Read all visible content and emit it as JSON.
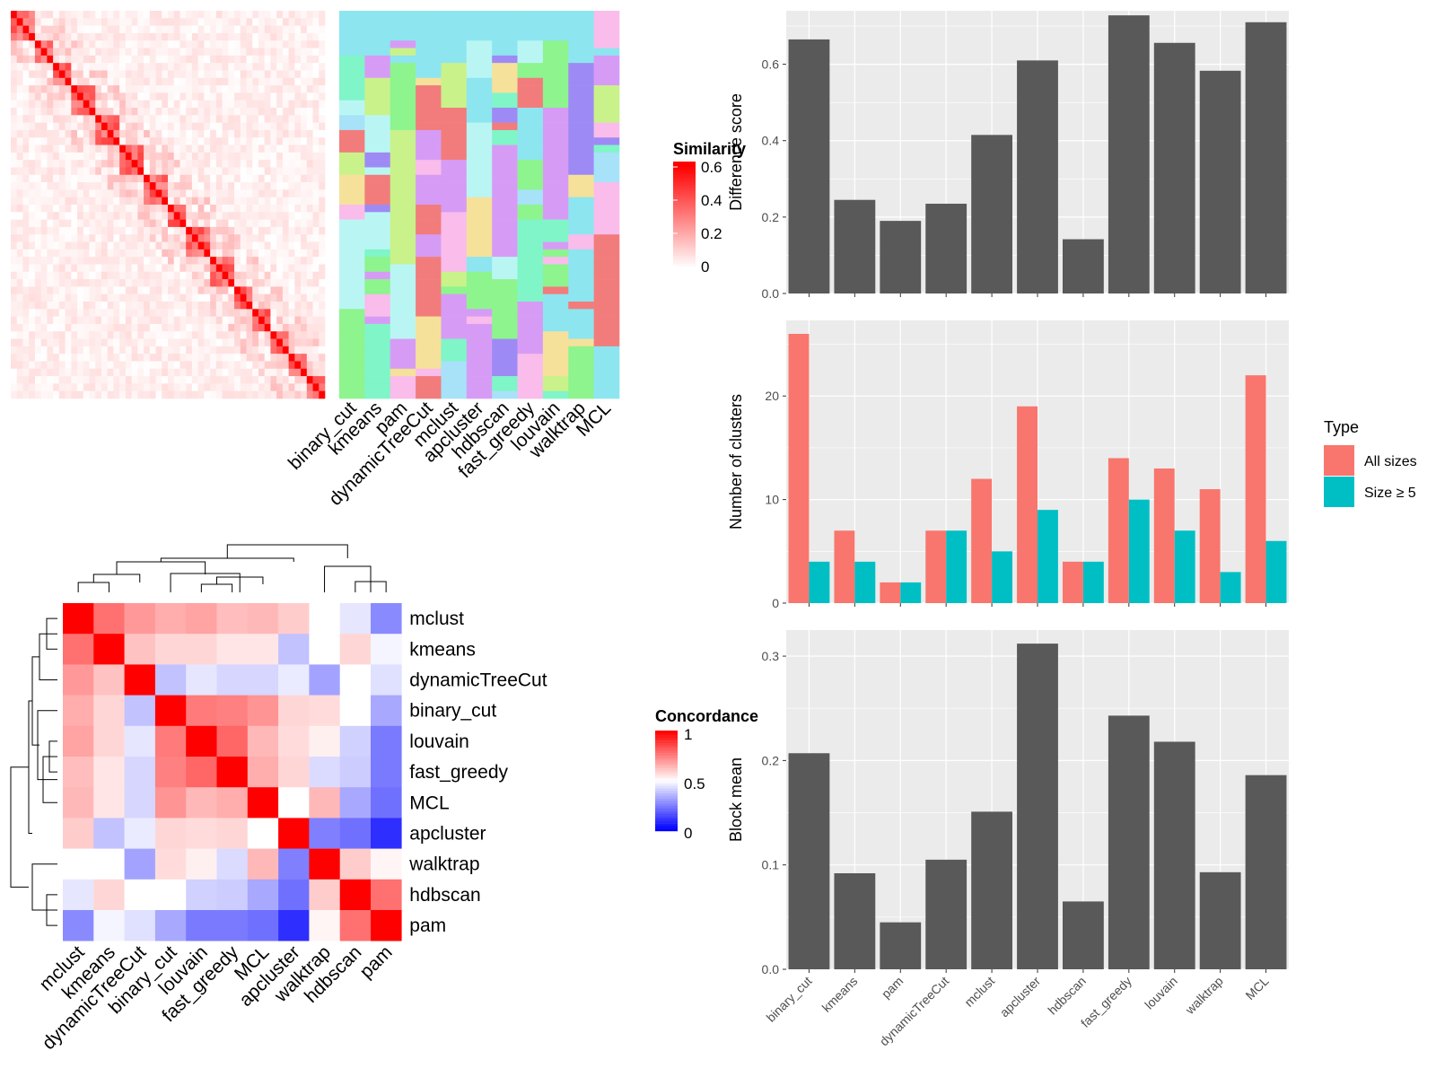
{
  "methods_order_top": [
    "binary_cut",
    "kmeans",
    "pam",
    "dynamicTreeCut",
    "mclust",
    "apcluster",
    "hdbscan",
    "fast_greedy",
    "louvain",
    "walktrap",
    "MCL"
  ],
  "similarity_legend": {
    "title": "Similarity",
    "ticks": [
      "0.6",
      "0.4",
      "0.2",
      "0"
    ]
  },
  "concordance_legend": {
    "title": "Concordance",
    "ticks": [
      "1",
      "0.5",
      "0"
    ]
  },
  "concordance": {
    "order": [
      "mclust",
      "kmeans",
      "dynamicTreeCut",
      "binary_cut",
      "louvain",
      "fast_greedy",
      "MCL",
      "apcluster",
      "walktrap",
      "hdbscan",
      "pam"
    ],
    "matrix": [
      [
        1.0,
        0.78,
        0.7,
        0.66,
        0.68,
        0.63,
        0.64,
        0.6,
        0.5,
        0.45,
        0.27
      ],
      [
        0.78,
        1.0,
        0.62,
        0.58,
        0.58,
        0.55,
        0.55,
        0.38,
        0.5,
        0.58,
        0.48
      ],
      [
        0.7,
        0.62,
        1.0,
        0.38,
        0.45,
        0.42,
        0.42,
        0.46,
        0.32,
        0.5,
        0.44
      ],
      [
        0.66,
        0.58,
        0.38,
        1.0,
        0.76,
        0.75,
        0.71,
        0.58,
        0.57,
        0.5,
        0.33
      ],
      [
        0.68,
        0.58,
        0.45,
        0.76,
        1.0,
        0.8,
        0.64,
        0.57,
        0.53,
        0.41,
        0.24
      ],
      [
        0.63,
        0.55,
        0.42,
        0.75,
        0.8,
        1.0,
        0.66,
        0.58,
        0.43,
        0.4,
        0.24
      ],
      [
        0.64,
        0.55,
        0.42,
        0.71,
        0.64,
        0.66,
        1.0,
        0.5,
        0.64,
        0.33,
        0.22
      ],
      [
        0.6,
        0.38,
        0.46,
        0.58,
        0.57,
        0.58,
        0.5,
        1.0,
        0.25,
        0.22,
        0.09
      ],
      [
        0.5,
        0.5,
        0.32,
        0.57,
        0.53,
        0.43,
        0.64,
        0.25,
        1.0,
        0.6,
        0.52
      ],
      [
        0.45,
        0.58,
        0.5,
        0.5,
        0.41,
        0.4,
        0.33,
        0.22,
        0.6,
        1.0,
        0.78
      ],
      [
        0.27,
        0.48,
        0.44,
        0.33,
        0.24,
        0.24,
        0.22,
        0.09,
        0.52,
        0.78,
        1.0
      ]
    ]
  },
  "chart_data": [
    {
      "type": "bar",
      "ylabel": "Difference score",
      "categories": [
        "binary_cut",
        "kmeans",
        "pam",
        "dynamicTreeCut",
        "mclust",
        "apcluster",
        "hdbscan",
        "fast_greedy",
        "louvain",
        "walktrap",
        "MCL"
      ],
      "values": [
        0.665,
        0.245,
        0.19,
        0.235,
        0.415,
        0.61,
        0.142,
        0.728,
        0.656,
        0.583,
        0.71
      ],
      "ylim": [
        0,
        0.74
      ],
      "yticks": [
        "0.0",
        "0.2",
        "0.4",
        "0.6"
      ]
    },
    {
      "type": "bar",
      "ylabel": "Number of clusters",
      "legend": {
        "title": "Type",
        "entries": [
          "All sizes",
          "Size ≥ 5"
        ]
      },
      "categories": [
        "binary_cut",
        "kmeans",
        "pam",
        "dynamicTreeCut",
        "mclust",
        "apcluster",
        "hdbscan",
        "fast_greedy",
        "louvain",
        "walktrap",
        "MCL"
      ],
      "series": [
        {
          "name": "All sizes",
          "values": [
            26,
            7,
            2,
            7,
            12,
            19,
            4,
            14,
            13,
            11,
            22
          ],
          "color": "#F8766D"
        },
        {
          "name": "Size ≥ 5",
          "values": [
            4,
            4,
            2,
            7,
            5,
            9,
            4,
            10,
            7,
            3,
            6
          ],
          "color": "#00BFC4"
        }
      ],
      "ylim": [
        0,
        27.3
      ],
      "yticks": [
        "0",
        "10",
        "20"
      ]
    },
    {
      "type": "bar",
      "ylabel": "Block mean",
      "categories": [
        "binary_cut",
        "kmeans",
        "pam",
        "dynamicTreeCut",
        "mclust",
        "apcluster",
        "hdbscan",
        "fast_greedy",
        "louvain",
        "walktrap",
        "MCL"
      ],
      "values": [
        0.207,
        0.092,
        0.045,
        0.105,
        0.151,
        0.312,
        0.065,
        0.243,
        0.218,
        0.093,
        0.186
      ],
      "ylim": [
        0,
        0.325
      ],
      "yticks": [
        "0.0",
        "0.1",
        "0.2",
        "0.3"
      ]
    }
  ]
}
